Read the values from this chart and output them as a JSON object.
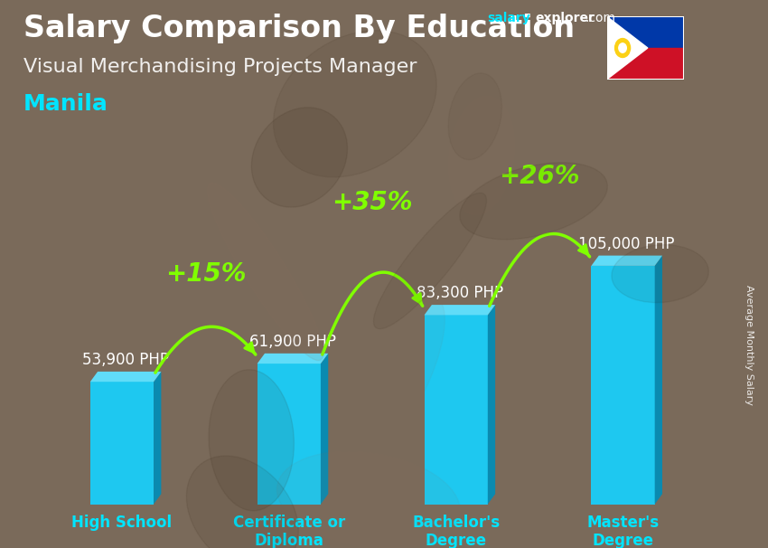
{
  "title": "Salary Comparison By Education",
  "subtitle": "Visual Merchandising Projects Manager",
  "city": "Manila",
  "ylabel": "Average Monthly Salary",
  "categories": [
    "High School",
    "Certificate or\nDiploma",
    "Bachelor's\nDegree",
    "Master's\nDegree"
  ],
  "values": [
    53900,
    61900,
    83300,
    105000
  ],
  "value_labels": [
    "53,900 PHP",
    "61,900 PHP",
    "83,300 PHP",
    "105,000 PHP"
  ],
  "pct_labels": [
    "+15%",
    "+35%",
    "+26%"
  ],
  "bar_color_face": "#1ec8f0",
  "bar_color_dark": "#0a8ab0",
  "bar_color_top": "#60dcf8",
  "background_color": "#7a6a5a",
  "text_color_white": "#ffffff",
  "text_color_cyan": "#00e5ff",
  "text_color_green": "#80ff00",
  "arrow_color": "#80ff00",
  "ylim": [
    0,
    140000
  ],
  "title_fontsize": 24,
  "subtitle_fontsize": 16,
  "city_fontsize": 18,
  "value_fontsize": 12,
  "pct_fontsize": 20,
  "ylabel_fontsize": 8,
  "xtick_fontsize": 12
}
